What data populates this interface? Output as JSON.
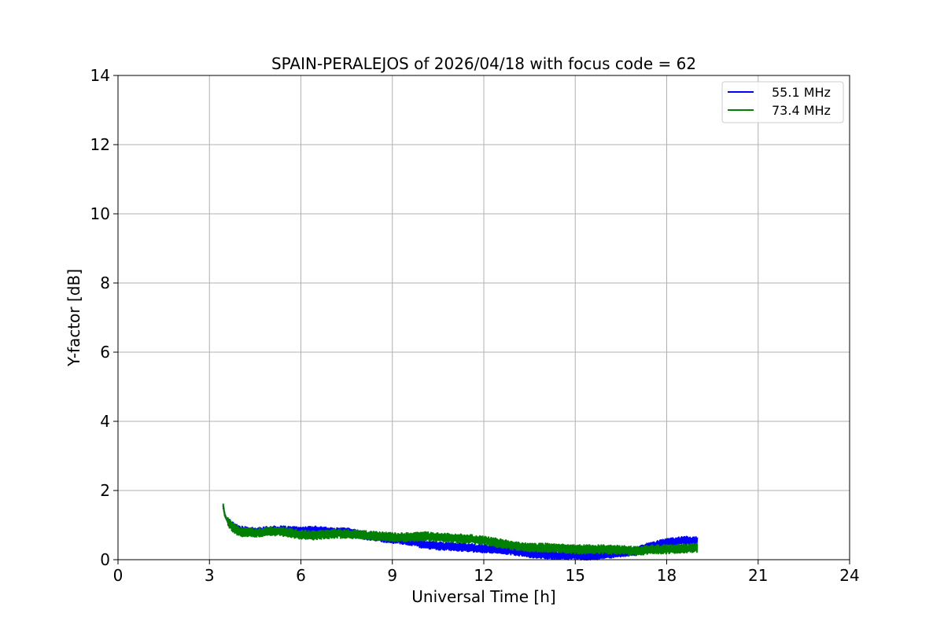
{
  "chart_data": {
    "type": "line",
    "title": "SPAIN-PERALEJOS of 2026/04/18 with focus code = 62",
    "xlabel": "Universal Time [h]",
    "ylabel": "Y-factor [dB]",
    "xlim": [
      0,
      24
    ],
    "ylim": [
      0,
      14
    ],
    "xticks": [
      0,
      3,
      6,
      9,
      12,
      15,
      18,
      21,
      24
    ],
    "yticks": [
      0,
      2,
      4,
      6,
      8,
      10,
      12,
      14
    ],
    "grid": true,
    "legend_position": "top-right",
    "series": [
      {
        "name": "55.1 MHz",
        "color": "#0000ff",
        "x": [
          3.45,
          3.5,
          3.6,
          3.8,
          4.0,
          4.5,
          5.0,
          5.5,
          6.0,
          6.5,
          7.0,
          7.5,
          8.0,
          8.5,
          9.0,
          9.5,
          10.0,
          10.5,
          11.0,
          11.5,
          12.0,
          12.5,
          13.0,
          13.5,
          14.0,
          14.5,
          15.0,
          15.5,
          16.0,
          16.5,
          17.0,
          17.5,
          18.0,
          18.5,
          19.0
        ],
        "y": [
          1.55,
          1.3,
          1.1,
          0.95,
          0.85,
          0.8,
          0.85,
          0.85,
          0.82,
          0.85,
          0.8,
          0.8,
          0.72,
          0.65,
          0.6,
          0.55,
          0.45,
          0.4,
          0.38,
          0.35,
          0.32,
          0.3,
          0.25,
          0.18,
          0.15,
          0.12,
          0.12,
          0.1,
          0.15,
          0.2,
          0.25,
          0.4,
          0.5,
          0.55,
          0.55
        ],
        "spread": 0.12
      },
      {
        "name": "73.4 MHz",
        "color": "#008000",
        "x": [
          3.45,
          3.5,
          3.6,
          3.8,
          4.0,
          4.5,
          5.0,
          5.5,
          6.0,
          6.5,
          7.0,
          7.5,
          8.0,
          8.5,
          9.0,
          9.5,
          10.0,
          10.5,
          11.0,
          11.5,
          12.0,
          12.5,
          13.0,
          13.5,
          14.0,
          14.5,
          15.0,
          15.5,
          16.0,
          16.5,
          17.0,
          17.5,
          18.0,
          18.5,
          19.0
        ],
        "y": [
          1.6,
          1.3,
          1.1,
          0.9,
          0.8,
          0.78,
          0.82,
          0.8,
          0.72,
          0.7,
          0.75,
          0.75,
          0.72,
          0.68,
          0.65,
          0.65,
          0.68,
          0.65,
          0.62,
          0.6,
          0.55,
          0.48,
          0.4,
          0.35,
          0.35,
          0.32,
          0.3,
          0.3,
          0.3,
          0.28,
          0.25,
          0.3,
          0.3,
          0.32,
          0.35
        ],
        "spread": 0.13
      }
    ]
  }
}
